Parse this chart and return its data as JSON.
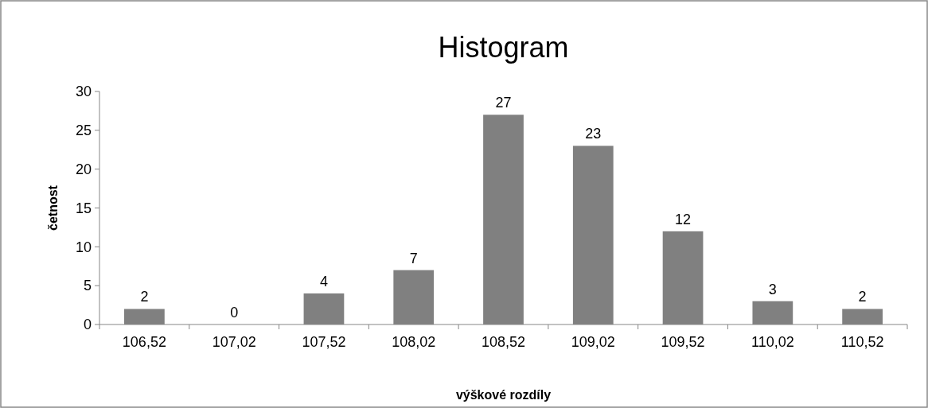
{
  "chart_data": {
    "type": "bar",
    "title": "Histogram",
    "xlabel": "výškové rozdíly",
    "ylabel": "četnost",
    "categories": [
      "106,52",
      "107,02",
      "107,52",
      "108,02",
      "108,52",
      "109,02",
      "109,52",
      "110,02",
      "110,52"
    ],
    "values": [
      2,
      0,
      4,
      7,
      27,
      23,
      12,
      3,
      2
    ],
    "color": "#808080",
    "ylim": [
      0,
      30
    ],
    "yticks": [
      0,
      5,
      10,
      15,
      20,
      25,
      30
    ],
    "grid": false,
    "data_labels": true
  }
}
